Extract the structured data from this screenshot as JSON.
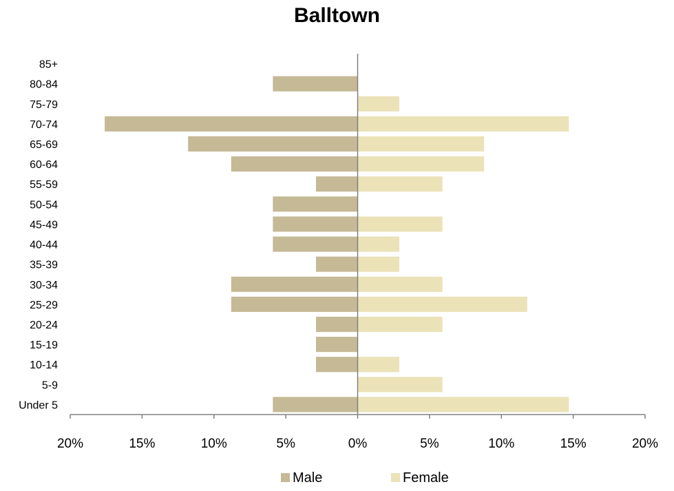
{
  "chart_data": {
    "type": "bar",
    "orientation": "horizontal",
    "title": "Balltown",
    "categories": [
      "85+",
      "80-84",
      "75-79",
      "70-74",
      "65-69",
      "60-64",
      "55-59",
      "50-54",
      "45-49",
      "40-44",
      "35-39",
      "30-34",
      "25-29",
      "20-24",
      "15-19",
      "10-14",
      "5-9",
      "Under 5"
    ],
    "series": [
      {
        "name": "Male",
        "color": "#c6b996",
        "values": [
          0,
          5.9,
          0,
          17.6,
          11.8,
          8.8,
          2.9,
          5.9,
          5.9,
          5.9,
          2.9,
          8.8,
          8.8,
          2.9,
          2.9,
          2.9,
          0,
          5.9
        ]
      },
      {
        "name": "Female",
        "color": "#ebe2b8",
        "values": [
          0,
          0,
          2.9,
          14.7,
          8.8,
          8.8,
          5.9,
          0,
          5.9,
          2.9,
          2.9,
          5.9,
          11.8,
          5.9,
          0,
          2.9,
          5.9,
          14.7
        ]
      }
    ],
    "xlim": [
      -20,
      20
    ],
    "xticks": [
      "20%",
      "15%",
      "10%",
      "5%",
      "0%",
      "5%",
      "10%",
      "15%",
      "20%"
    ],
    "grid": false,
    "legend": "bottom"
  }
}
